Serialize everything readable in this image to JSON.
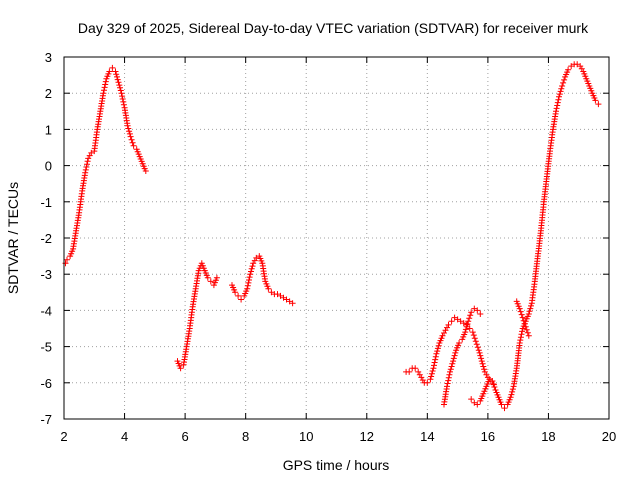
{
  "chart_data": {
    "type": "scatter",
    "title": "Day 329 of 2025, Sidereal Day-to-day VTEC variation (SDTVAR) for receiver murk",
    "xlabel": "GPS time / hours",
    "ylabel": "SDTVAR / TECUs",
    "xlim": [
      2,
      20
    ],
    "ylim": [
      -7,
      3
    ],
    "xticks": [
      2,
      4,
      6,
      8,
      10,
      12,
      14,
      16,
      18,
      20
    ],
    "yticks": [
      -7,
      -6,
      -5,
      -4,
      -3,
      -2,
      -1,
      0,
      1,
      2,
      3
    ],
    "grid": true,
    "marker": "plus",
    "color": "#ff0000",
    "segments": [
      {
        "x": [
          2.05,
          2.1,
          2.2,
          2.3,
          2.4,
          2.5,
          2.6,
          2.7,
          2.8,
          2.9,
          3.0,
          3.1,
          3.2,
          3.3,
          3.4,
          3.5,
          3.6,
          3.7,
          3.8,
          3.9,
          4.0,
          4.1,
          4.2,
          4.3,
          4.4,
          4.5,
          4.6,
          4.7
        ],
        "y": [
          -2.7,
          -2.6,
          -2.5,
          -2.3,
          -1.8,
          -1.3,
          -0.7,
          -0.2,
          0.2,
          0.35,
          0.4,
          1.0,
          1.5,
          2.0,
          2.4,
          2.6,
          2.7,
          2.6,
          2.3,
          2.0,
          1.6,
          1.1,
          0.8,
          0.55,
          0.45,
          0.25,
          0.05,
          -0.15
        ]
      },
      {
        "x": [
          5.75,
          5.85,
          5.95,
          6.05,
          6.15,
          6.25,
          6.35,
          6.45,
          6.55,
          6.65,
          6.75,
          6.85,
          6.95,
          7.05
        ],
        "y": [
          -5.4,
          -5.6,
          -5.5,
          -5.0,
          -4.5,
          -3.9,
          -3.4,
          -2.9,
          -2.7,
          -2.9,
          -3.1,
          -3.2,
          -3.3,
          -3.1
        ]
      },
      {
        "x": [
          7.55,
          7.65,
          7.75,
          7.85,
          7.95,
          8.05,
          8.15,
          8.25,
          8.35,
          8.45,
          8.55,
          8.65,
          8.75,
          8.85,
          8.95,
          9.05,
          9.15,
          9.25,
          9.35,
          9.45,
          9.55
        ],
        "y": [
          -3.3,
          -3.5,
          -3.6,
          -3.7,
          -3.6,
          -3.4,
          -3.0,
          -2.7,
          -2.55,
          -2.5,
          -2.7,
          -3.2,
          -3.4,
          -3.5,
          -3.55,
          -3.55,
          -3.6,
          -3.65,
          -3.7,
          -3.75,
          -3.8
        ]
      },
      {
        "x": [
          13.3,
          13.4,
          13.5,
          13.6,
          13.7,
          13.8,
          13.9,
          14.0,
          14.1,
          14.2,
          14.3,
          14.4,
          14.5,
          14.6,
          14.7,
          14.8,
          14.9,
          15.0,
          15.1,
          15.2,
          15.3,
          15.4,
          15.5,
          15.6,
          15.7,
          15.8,
          15.9,
          16.0,
          16.1,
          16.2
        ],
        "y": [
          -5.7,
          -5.7,
          -5.6,
          -5.6,
          -5.7,
          -5.85,
          -6.0,
          -6.0,
          -5.9,
          -5.6,
          -5.2,
          -4.9,
          -4.7,
          -4.55,
          -4.4,
          -4.3,
          -4.2,
          -4.25,
          -4.3,
          -4.35,
          -4.4,
          -4.5,
          -4.6,
          -4.85,
          -5.1,
          -5.4,
          -5.7,
          -5.85,
          -5.95,
          -6.05
        ]
      },
      {
        "x": [
          14.55,
          14.65,
          14.75,
          14.85,
          14.95,
          15.05,
          15.15,
          15.25,
          15.35,
          15.45,
          15.55,
          15.65,
          15.75
        ],
        "y": [
          -6.6,
          -6.1,
          -5.7,
          -5.4,
          -5.1,
          -4.9,
          -4.8,
          -4.6,
          -4.3,
          -4.05,
          -3.95,
          -4.0,
          -4.1
        ]
      },
      {
        "x": [
          15.45,
          15.55,
          15.65,
          15.75,
          15.85,
          15.95,
          16.05,
          16.15,
          16.25,
          16.35,
          16.45,
          16.55,
          16.65,
          16.75,
          16.85,
          16.95,
          17.05,
          17.15,
          17.25,
          17.35,
          17.45,
          17.55,
          17.65,
          17.75,
          17.85,
          17.95,
          18.05,
          18.15,
          18.25,
          18.35,
          18.45,
          18.55,
          18.65,
          18.75,
          18.85,
          18.95,
          19.05,
          19.15,
          19.25,
          19.35,
          19.45,
          19.55,
          19.65
        ],
        "y": [
          -6.45,
          -6.55,
          -6.6,
          -6.5,
          -6.3,
          -6.1,
          -5.9,
          -5.95,
          -6.2,
          -6.4,
          -6.6,
          -6.7,
          -6.6,
          -6.4,
          -6.1,
          -5.6,
          -4.9,
          -4.5,
          -4.3,
          -4.1,
          -3.8,
          -3.2,
          -2.5,
          -1.8,
          -1.0,
          -0.3,
          0.4,
          1.0,
          1.5,
          1.9,
          2.2,
          2.45,
          2.65,
          2.75,
          2.8,
          2.8,
          2.75,
          2.6,
          2.4,
          2.2,
          2.0,
          1.8,
          1.7
        ]
      },
      {
        "x": [
          16.95,
          17.05,
          17.15,
          17.25,
          17.35
        ],
        "y": [
          -3.75,
          -3.95,
          -4.2,
          -4.45,
          -4.7
        ]
      }
    ]
  }
}
